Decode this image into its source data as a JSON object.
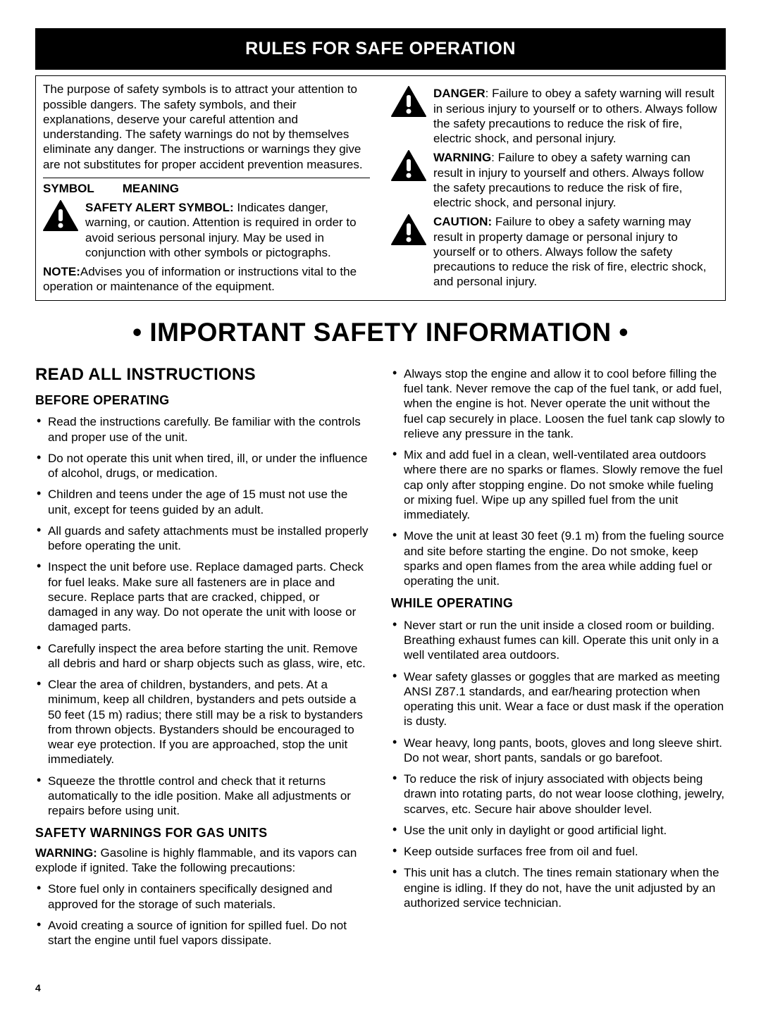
{
  "banner": "RULES FOR SAFE OPERATION",
  "intro": "The purpose of safety symbols is to attract your attention to possible dangers. The safety symbols, and their explanations, deserve your careful attention and understanding. The safety warnings do not by themselves eliminate any danger. The instructions or warnings they give are not substitutes for proper accident prevention measures.",
  "symbol_header_1": "SYMBOL",
  "symbol_header_2": "MEANING",
  "alert": {
    "label": "SAFETY ALERT SYMBOL:",
    "text": " Indicates danger, warning, or caution. Attention is required in order to avoid serious personal injury. May be used in conjunction with other symbols or pictographs."
  },
  "note": {
    "label": "NOTE:",
    "text": "Advises you of information or instructions vital to the operation or maintenance of the equipment."
  },
  "danger": {
    "label": "DANGER",
    "text": ": Failure to obey a safety warning will result in serious injury to yourself or to others. Always follow the safety precautions to reduce the risk of fire, electric shock, and personal injury."
  },
  "warning": {
    "label": "WARNING",
    "text": ": Failure to obey a safety warning can result in injury to yourself and others. Always follow the safety precautions to reduce the risk of fire, electric shock, and personal injury."
  },
  "caution": {
    "label": "CAUTION:",
    "text": " Failure to obey a safety warning may result in property damage or personal injury to yourself or to others. Always follow the safety precautions to reduce the risk of fire, electric shock, and personal injury."
  },
  "big_title": "• IMPORTANT SAFETY INFORMATION •",
  "read_all": "READ ALL INSTRUCTIONS",
  "before_operating": "BEFORE OPERATING",
  "before_items": [
    "Read the instructions carefully. Be familiar with the controls and proper use of the unit.",
    "Do not operate this unit when tired, ill, or under the influence of alcohol, drugs, or medication.",
    "Children and teens under the age of 15 must not use the unit, except for teens guided by an adult.",
    "All guards and safety attachments must be installed properly before operating the unit.",
    "Inspect the unit before use. Replace damaged parts. Check for fuel leaks. Make sure all fasteners are in place and secure. Replace parts that are cracked, chipped, or damaged in any way. Do not operate the unit with loose or damaged parts.",
    "Carefully inspect the area before starting the unit. Remove all debris and hard or sharp objects such as glass, wire, etc.",
    "Clear the area of children, bystanders, and pets. At a minimum, keep all children, bystanders and pets outside a 50 feet (15 m) radius; there still may be a risk to bystanders from thrown objects. Bystanders should be encouraged to wear eye protection. If you are approached, stop the unit immediately.",
    "Squeeze the throttle control and check that it returns automatically to the idle position. Make all adjustments or repairs before using unit."
  ],
  "gas_heading": "SAFETY WARNINGS FOR GAS UNITS",
  "gas_warning_label": "WARNING:",
  "gas_warning_text": " Gasoline is highly flammable, and its vapors can explode if ignited. Take the following precautions:",
  "gas_items": [
    "Store fuel only in containers specifically designed and approved for the storage of such materials.",
    "Avoid creating a source of ignition for spilled fuel. Do not start the engine until fuel vapors dissipate."
  ],
  "gas_items_col2": [
    "Always stop the engine and allow it to cool before filling the fuel tank. Never remove the cap of the fuel tank, or add fuel, when the engine is hot. Never operate the unit without the fuel cap securely in place. Loosen the fuel tank cap slowly to relieve any pressure in the tank.",
    "Mix and add fuel in a clean, well-ventilated area outdoors where there are no sparks or flames. Slowly remove the fuel cap only after stopping engine. Do not smoke while fueling or mixing fuel. Wipe up any spilled fuel from the unit immediately.",
    "Move the unit at least 30 feet (9.1 m) from the fueling source and site before starting the engine. Do not smoke, keep sparks and open flames from the area while adding fuel or operating the unit."
  ],
  "while_heading": "WHILE OPERATING",
  "while_items": [
    "Never start or run the unit inside a closed room or building. Breathing exhaust fumes can kill. Operate this unit only in a well ventilated area outdoors.",
    "Wear safety glasses or goggles that are marked as meeting ANSI Z87.1 standards, and ear/hearing protection when operating this unit. Wear a face or dust mask if the operation is dusty.",
    "Wear heavy, long pants, boots, gloves and long sleeve shirt. Do not wear, short pants, sandals or go barefoot.",
    "To reduce the risk of injury associated with objects being drawn into rotating parts, do not wear loose clothing, jewelry, scarves, etc. Secure hair above shoulder level.",
    "Use the unit only in daylight or good artificial light.",
    "Keep outside surfaces free from oil and fuel.",
    "This unit has a clutch. The tines remain stationary when the engine is idling. If they do not, have the unit adjusted by an authorized service technician."
  ],
  "page_number": "4",
  "icons": {
    "triangle_fill": "#000000",
    "bang_fill": "#ffffff"
  }
}
